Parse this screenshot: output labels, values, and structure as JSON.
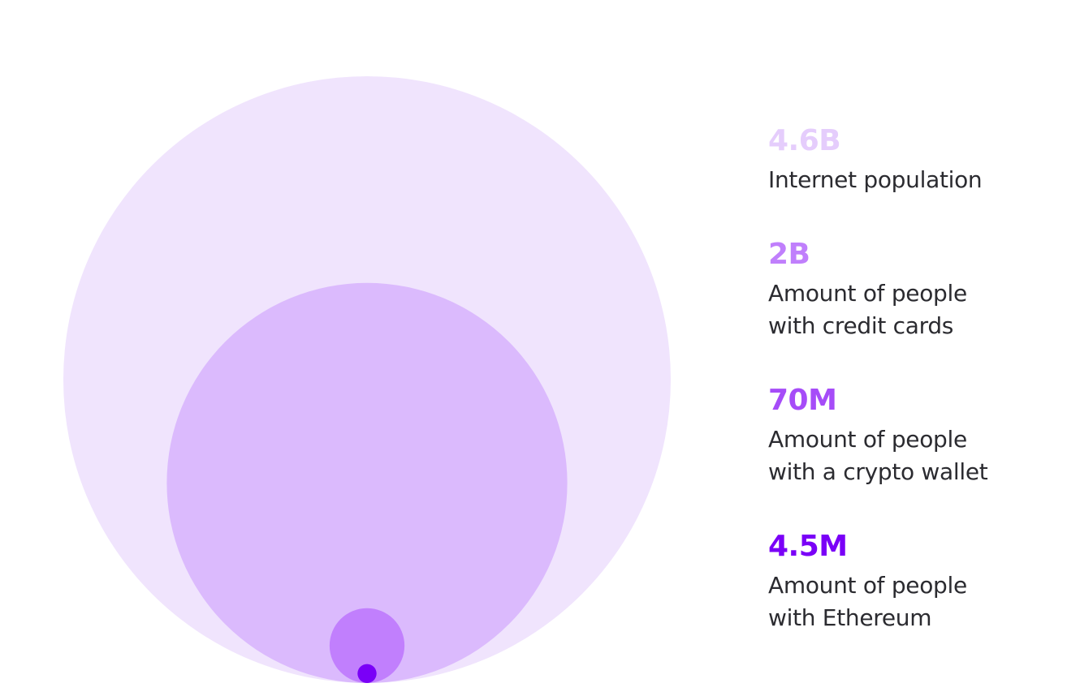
{
  "chart_data": {
    "type": "nested-bubble",
    "categories": [
      "Internet population",
      "Amount of people with credit cards",
      "Amount of people with a crypto wallet",
      "Amount of people with Ethereum"
    ],
    "values": [
      4600000000,
      2000000000,
      70000000,
      4500000
    ],
    "value_labels": [
      "4.6B",
      "2B",
      "70M",
      "4.5M"
    ],
    "colors": [
      "#f0e4fd",
      "#dbbafd",
      "#c17ffd",
      "#7a00f7"
    ],
    "label_colors": [
      "#e5cdfc",
      "#c07ffc",
      "#a64cf8",
      "#7a00f7"
    ]
  }
}
